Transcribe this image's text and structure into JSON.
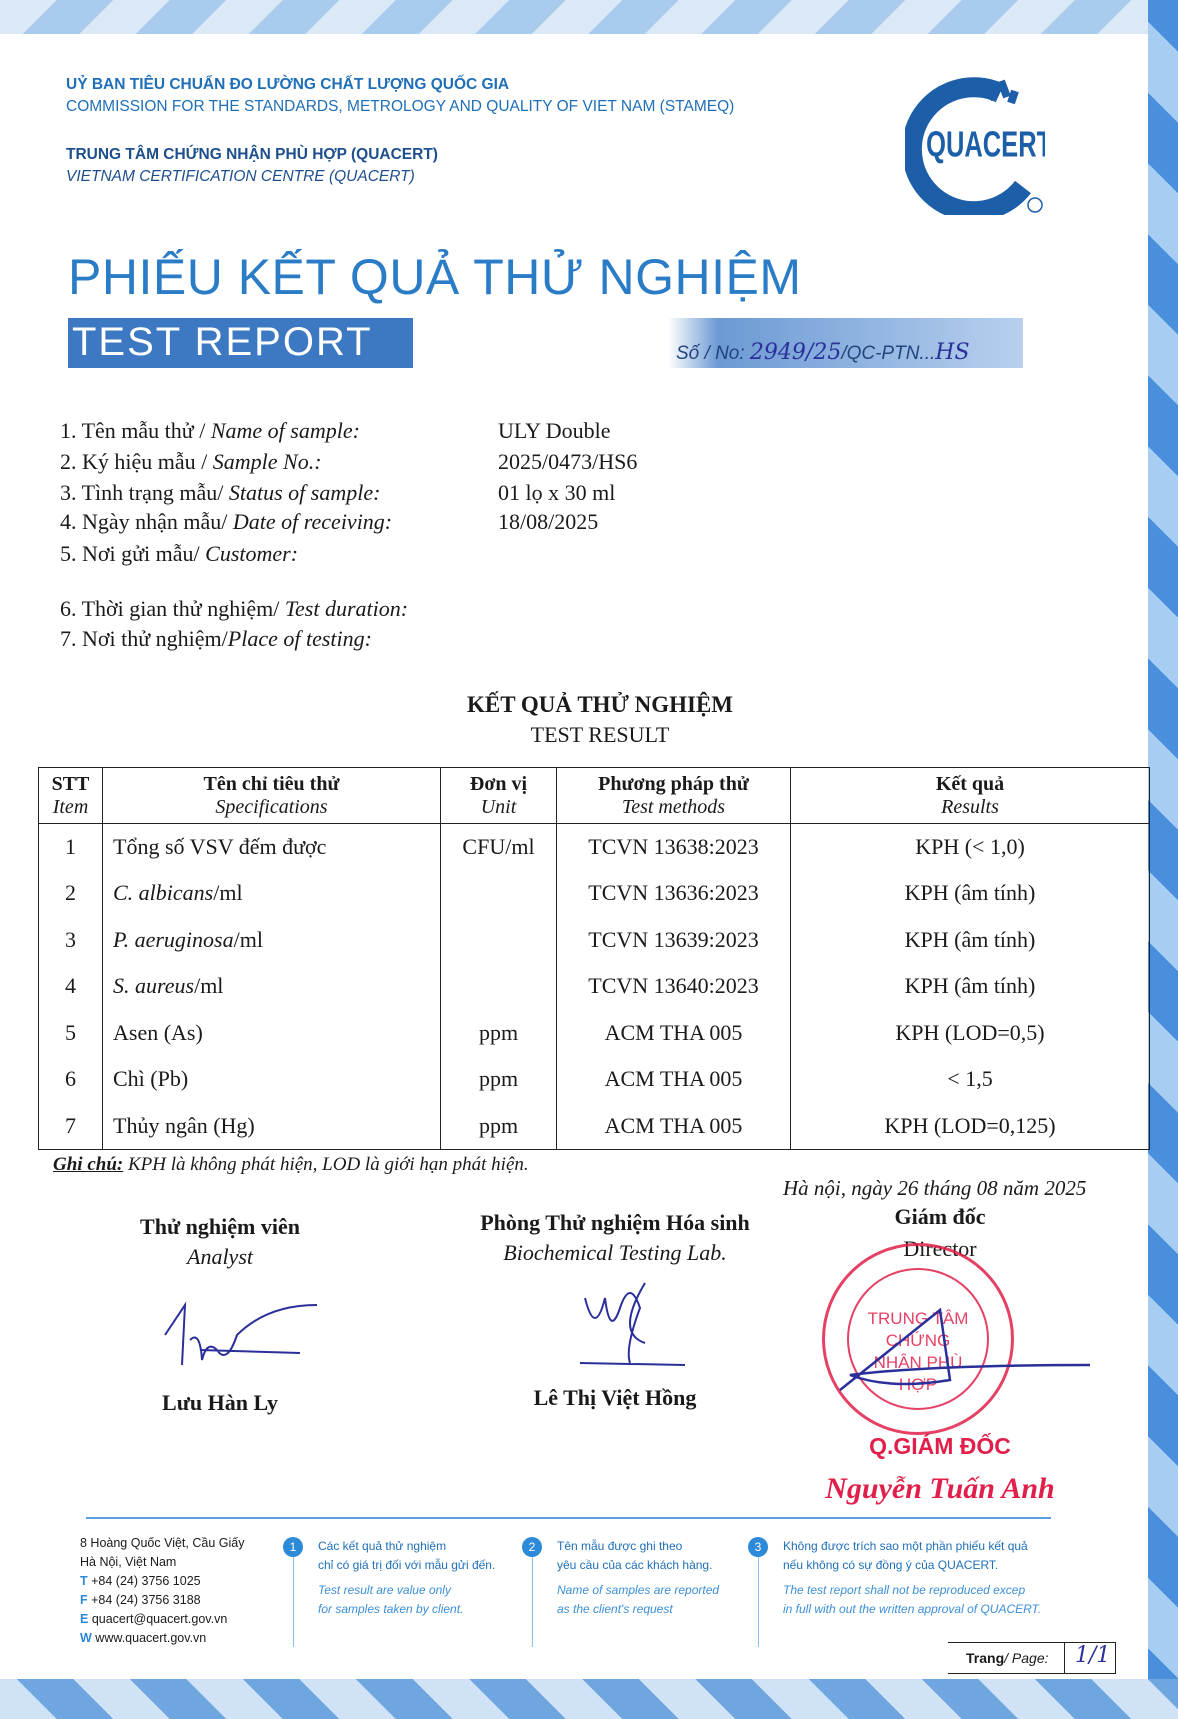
{
  "header": {
    "org_vi": "UỶ BAN TIÊU CHUẨN ĐO LƯỜNG CHẤT LƯỢNG QUỐC GIA",
    "org_en": "COMMISSION FOR THE STANDARDS, METROLOGY AND QUALITY OF VIET NAM (STAMEQ)",
    "centre_vi": "TRUNG TÂM CHỨNG NHẬN PHÙ HỢP (QUACERT)",
    "centre_en": "VIETNAM CERTIFICATION CENTRE (QUACERT)",
    "logo_text": "QUACERT",
    "title_vi": "PHIẾU KẾT QUẢ THỬ NGHIỆM",
    "title_en": "TEST REPORT",
    "no_label": "Số / No: ",
    "no_value": "2949/25",
    "no_suffix": "/QC-PTN...",
    "no_hand_suffix": "HS"
  },
  "fields": [
    {
      "label_vi": "1. Tên mẫu thử / ",
      "label_en": "Name of sample:",
      "value": "ULY Double"
    },
    {
      "label_vi": "2. Ký hiệu mẫu / ",
      "label_en": "Sample No.:",
      "value": "2025/0473/HS6"
    },
    {
      "label_vi": "3. Tình trạng mẫu/ ",
      "label_en": "Status of sample:",
      "value": "01 lọ x 30 ml"
    },
    {
      "label_vi": "4. Ngày nhận mẫu/ ",
      "label_en": "Date of receiving:",
      "value": "18/08/2025"
    },
    {
      "label_vi": "5. Nơi gửi mẫu/ ",
      "label_en": "Customer:",
      "value": ""
    },
    {
      "label_vi": "6. Thời gian thử nghiệm/ ",
      "label_en": "Test duration:",
      "value": ""
    },
    {
      "label_vi": "7. Nơi thử nghiệm/",
      "label_en": "Place of testing:",
      "value": ""
    }
  ],
  "results": {
    "heading_vi": "KẾT QUẢ THỬ NGHIỆM",
    "heading_en": "TEST RESULT",
    "columns": [
      {
        "vi": "STT",
        "en": "Item"
      },
      {
        "vi": "Tên chỉ tiêu thử",
        "en": "Specifications"
      },
      {
        "vi": "Đơn vị",
        "en": "Unit"
      },
      {
        "vi": "Phương pháp thử",
        "en": "Test methods"
      },
      {
        "vi": "Kết quả",
        "en": "Results"
      }
    ],
    "rows": [
      {
        "item": "1",
        "spec": "Tổng số VSV đếm được",
        "spec_italic": "",
        "spec_suffix": "",
        "unit": "CFU/ml",
        "method": "TCVN 13638:2023",
        "result": "KPH (< 1,0)"
      },
      {
        "item": "2",
        "spec": "",
        "spec_italic": "C. albicans",
        "spec_suffix": "/ml",
        "unit": "",
        "method": "TCVN 13636:2023",
        "result": "KPH (âm tính)"
      },
      {
        "item": "3",
        "spec": "",
        "spec_italic": "P. aeruginosa",
        "spec_suffix": "/ml",
        "unit": "",
        "method": "TCVN 13639:2023",
        "result": "KPH (âm tính)"
      },
      {
        "item": "4",
        "spec": "",
        "spec_italic": "S. aureus",
        "spec_suffix": "/ml",
        "unit": "",
        "method": "TCVN 13640:2023",
        "result": "KPH (âm tính)"
      },
      {
        "item": "5",
        "spec": "Asen (As)",
        "spec_italic": "",
        "spec_suffix": "",
        "unit": "ppm",
        "method": "ACM THA 005",
        "result": "KPH (LOD=0,5)"
      },
      {
        "item": "6",
        "spec": "Chì (Pb)",
        "spec_italic": "",
        "spec_suffix": "",
        "unit": "ppm",
        "method": "ACM THA 005",
        "result": "< 1,5"
      },
      {
        "item": "7",
        "spec": "Thủy ngân (Hg)",
        "spec_italic": "",
        "spec_suffix": "",
        "unit": "ppm",
        "method": "ACM THA 005",
        "result": "KPH (LOD=0,125)"
      }
    ],
    "note_label": "Ghi chú:",
    "note_text": " KPH là không phát hiện, LOD là giới hạn phát hiện."
  },
  "signatures": {
    "date_line": "Hà nội, ngày 26 tháng 08 năm 2025",
    "analyst_vi": "Thử nghiệm viên",
    "analyst_en": "Analyst",
    "analyst_name": "Lưu Hàn Ly",
    "lab_vi": "Phòng Thử nghiệm Hóa sinh",
    "lab_en": "Biochemical Testing Lab.",
    "lab_name": "Lê Thị Việt Hồng",
    "director_vi": "Giám đốc",
    "director_en": "Director",
    "stamp_text": "TRUNG TÂM CHỨNG NHẬN PHÙ HỢP",
    "deputy_title": "Q.GIÁM ĐỐC",
    "director_name": "Nguyễn Tuấn Anh"
  },
  "footer": {
    "address_1": "8 Hoàng Quốc Việt, Cầu Giấy",
    "address_2": "Hà Nội, Việt Nam",
    "phone_label": "T",
    "phone": "+84 (24) 3756 1025",
    "fax_label": "F",
    "fax": "+84 (24) 3756 3188",
    "email_label": "E",
    "email": "quacert@quacert.gov.vn",
    "web_label": "W",
    "web": "www.quacert.gov.vn",
    "notes": [
      {
        "num": "1",
        "vi_1": "Các kết quả thử nghiệm",
        "vi_2": "chỉ có giá trị đối với mẫu gửi đến.",
        "en_1": "Test result are value only",
        "en_2": "for samples taken by client."
      },
      {
        "num": "2",
        "vi_1": "Tên mẫu được ghi theo",
        "vi_2": "yêu cầu của các khách hàng.",
        "en_1": "Name of samples are reported",
        "en_2": "as the client's request"
      },
      {
        "num": "3",
        "vi_1": "Không được trích sao một phần phiếu kết quả",
        "vi_2": "nếu không có sự đồng ý của QUACERT.",
        "en_1": "The test report shall not be reproduced excep",
        "en_2": "in full with out the written approval of QUACERT."
      }
    ],
    "page_label_vi": "Trang",
    "page_label_en": "/ Page:",
    "page_value": "1/1"
  },
  "colors": {
    "brand_blue": "#2b7cc7",
    "stamp_red": "#e0204a",
    "ink_blue": "#2a2f9a"
  }
}
